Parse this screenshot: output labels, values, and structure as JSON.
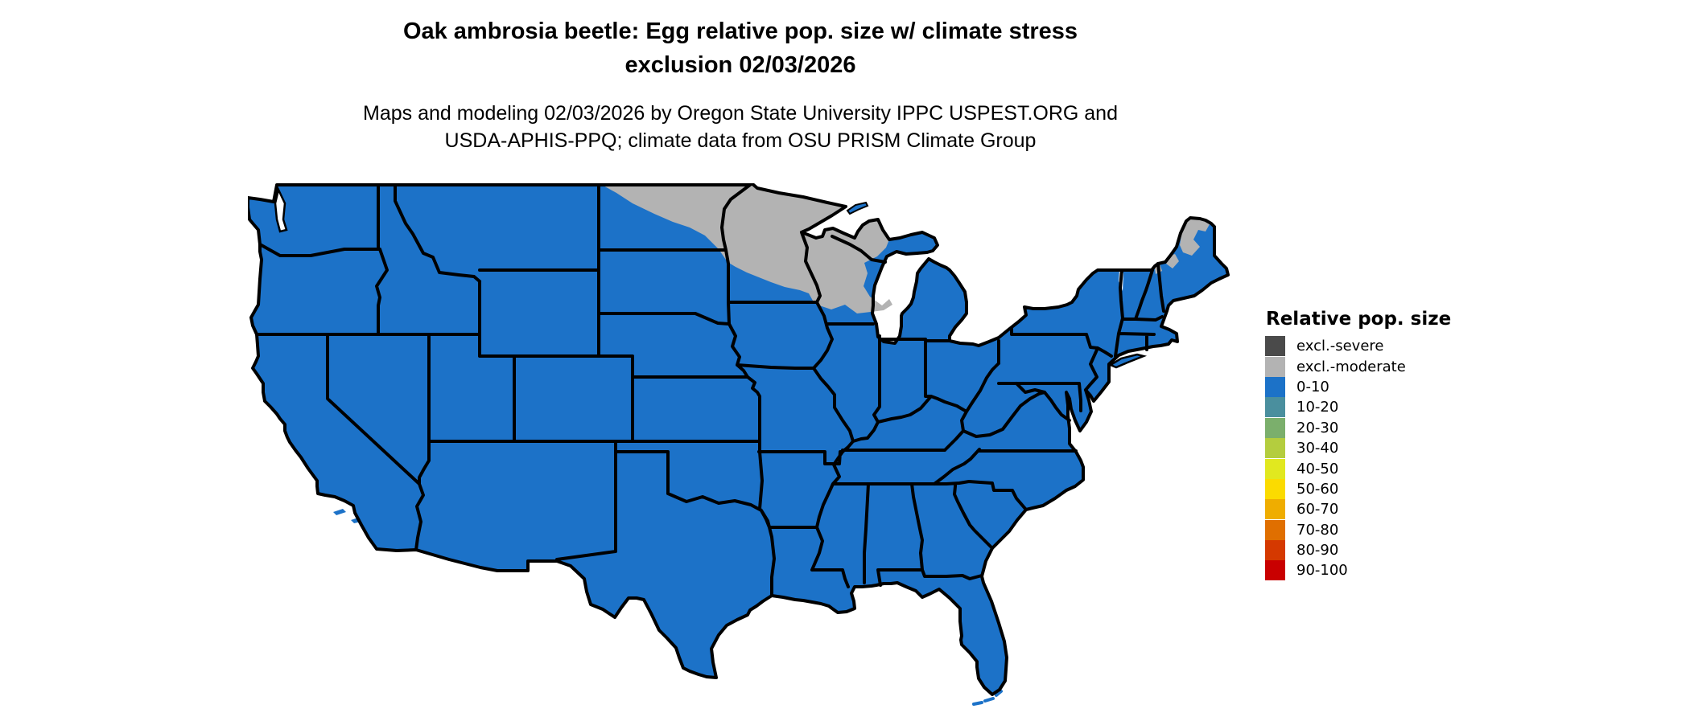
{
  "title": {
    "line1": "Oak ambrosia beetle: Egg relative pop. size w/ climate stress",
    "line2": "exclusion 02/03/2026"
  },
  "subtitle": {
    "line1": "Maps and modeling 02/03/2026 by Oregon State University IPPC USPEST.ORG and",
    "line2": "USDA-APHIS-PPQ; climate data from OSU PRISM Climate Group"
  },
  "legend": {
    "title": "Relative pop. size",
    "items": [
      {
        "label": "excl.-severe",
        "color": "#4A4A4A"
      },
      {
        "label": "excl.-moderate",
        "color": "#B3B3B3"
      },
      {
        "label": "0-10",
        "color": "#1C72C8"
      },
      {
        "label": "10-20",
        "color": "#4A8F9E"
      },
      {
        "label": "20-30",
        "color": "#7BAF6C"
      },
      {
        "label": "30-40",
        "color": "#B4CD3E"
      },
      {
        "label": "40-50",
        "color": "#E1E81F"
      },
      {
        "label": "50-60",
        "color": "#FBDB00"
      },
      {
        "label": "60-70",
        "color": "#EFAD00"
      },
      {
        "label": "70-80",
        "color": "#E06F00"
      },
      {
        "label": "80-90",
        "color": "#D53900"
      },
      {
        "label": "90-100",
        "color": "#C90000"
      }
    ]
  },
  "map": {
    "border_color": "#000000",
    "water_color": "#FFFFFF",
    "base_class": "0-10",
    "base_color": "#1C72C8",
    "exclusion_moderate_color": "#B3B3B3",
    "excluded_moderate_regions": "northern North Dakota; northern and central Minnesota; northern Wisconsin; western Upper Peninsula of Michigan; northern Maine; northern New Hampshire",
    "all_other_area_class": "0-10 relative pop. size (blue)"
  }
}
